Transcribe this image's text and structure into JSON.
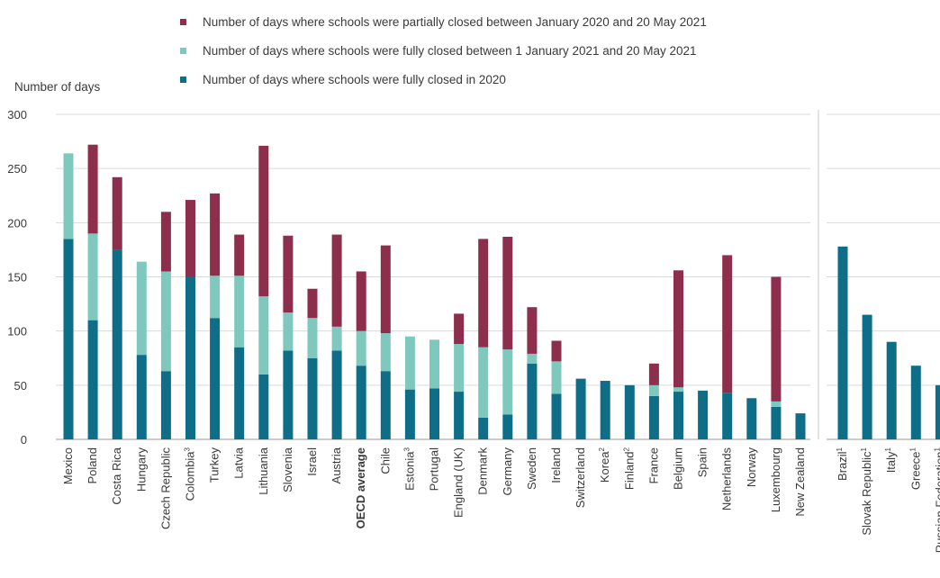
{
  "chart_data": {
    "type": "bar",
    "stacked": true,
    "ylabel": "Number of days",
    "ylim": [
      0,
      300
    ],
    "yticks": [
      0,
      50,
      100,
      150,
      200,
      250,
      300
    ],
    "grid": true,
    "legend_position": "top",
    "series": [
      {
        "name": "Number of days where schools were fully closed in 2020",
        "color": "#0e6e87"
      },
      {
        "name": "Number of days where schools were fully closed between 1 January 2021 and 20 May 2021",
        "color": "#7fc8bd"
      },
      {
        "name": "Number of days where schools were partially closed between January 2020 and 20 May 2021",
        "color": "#8c2e4c"
      }
    ],
    "legend_order": [
      2,
      1,
      0
    ],
    "groups": [
      {
        "categories": [
          {
            "label": "Mexico",
            "values": [
              185,
              79,
              0
            ]
          },
          {
            "label": "Poland",
            "values": [
              110,
              80,
              82
            ]
          },
          {
            "label": "Costa Rica",
            "values": [
              175,
              0,
              67
            ]
          },
          {
            "label": "Hungary",
            "values": [
              78,
              86,
              0
            ]
          },
          {
            "label": "Czech Republic",
            "values": [
              63,
              92,
              55
            ]
          },
          {
            "label": "Colombia",
            "sup": "3",
            "values": [
              150,
              0,
              71
            ]
          },
          {
            "label": "Turkey",
            "values": [
              112,
              39,
              76
            ]
          },
          {
            "label": "Latvia",
            "values": [
              85,
              66,
              38
            ]
          },
          {
            "label": "Lithuania",
            "values": [
              60,
              72,
              139
            ]
          },
          {
            "label": "Slovenia",
            "values": [
              82,
              35,
              71
            ]
          },
          {
            "label": "Israel",
            "values": [
              75,
              37,
              27
            ]
          },
          {
            "label": "Austria",
            "values": [
              82,
              22,
              85
            ]
          },
          {
            "label": "OECD average",
            "bold": true,
            "values": [
              68,
              32,
              55
            ]
          },
          {
            "label": "Chile",
            "values": [
              63,
              35,
              81
            ]
          },
          {
            "label": "Estonia",
            "sup": "3",
            "values": [
              46,
              49,
              0
            ]
          },
          {
            "label": "Portugal",
            "values": [
              47,
              45,
              0
            ]
          },
          {
            "label": "England (UK)",
            "values": [
              44,
              44,
              28
            ]
          },
          {
            "label": "Denmark",
            "values": [
              20,
              65,
              100
            ]
          },
          {
            "label": "Germany",
            "values": [
              23,
              60,
              104
            ]
          },
          {
            "label": "Sweden",
            "values": [
              70,
              9,
              43
            ]
          },
          {
            "label": "Ireland",
            "values": [
              42,
              30,
              19
            ]
          },
          {
            "label": "Switzerland",
            "values": [
              56,
              0,
              0
            ]
          },
          {
            "label": "Korea",
            "sup": "2",
            "values": [
              54,
              0,
              0
            ]
          },
          {
            "label": "Finland",
            "sup": "2",
            "values": [
              50,
              0,
              0
            ]
          },
          {
            "label": "France",
            "values": [
              40,
              10,
              20
            ]
          },
          {
            "label": "Belgium",
            "values": [
              44,
              4,
              108
            ]
          },
          {
            "label": "Spain",
            "values": [
              45,
              0,
              0
            ]
          },
          {
            "label": "Netherlands",
            "values": [
              43,
              0,
              127
            ]
          },
          {
            "label": "Norway",
            "values": [
              38,
              0,
              0
            ]
          },
          {
            "label": "Luxembourg",
            "values": [
              30,
              5,
              115
            ]
          },
          {
            "label": "New Zealand",
            "values": [
              24,
              0,
              0
            ]
          }
        ]
      },
      {
        "categories": [
          {
            "label": "Brazil",
            "sup": "1",
            "values": [
              178,
              0,
              0
            ]
          },
          {
            "label": "Slovak Republic",
            "sup": "1",
            "values": [
              115,
              0,
              0
            ]
          },
          {
            "label": "Italy",
            "sup": "1",
            "values": [
              90,
              0,
              0
            ]
          },
          {
            "label": "Greece",
            "sup": "1",
            "values": [
              68,
              0,
              0
            ]
          },
          {
            "label": "Russian Federation",
            "sup": "1",
            "values": [
              50,
              0,
              0
            ]
          }
        ]
      }
    ]
  }
}
